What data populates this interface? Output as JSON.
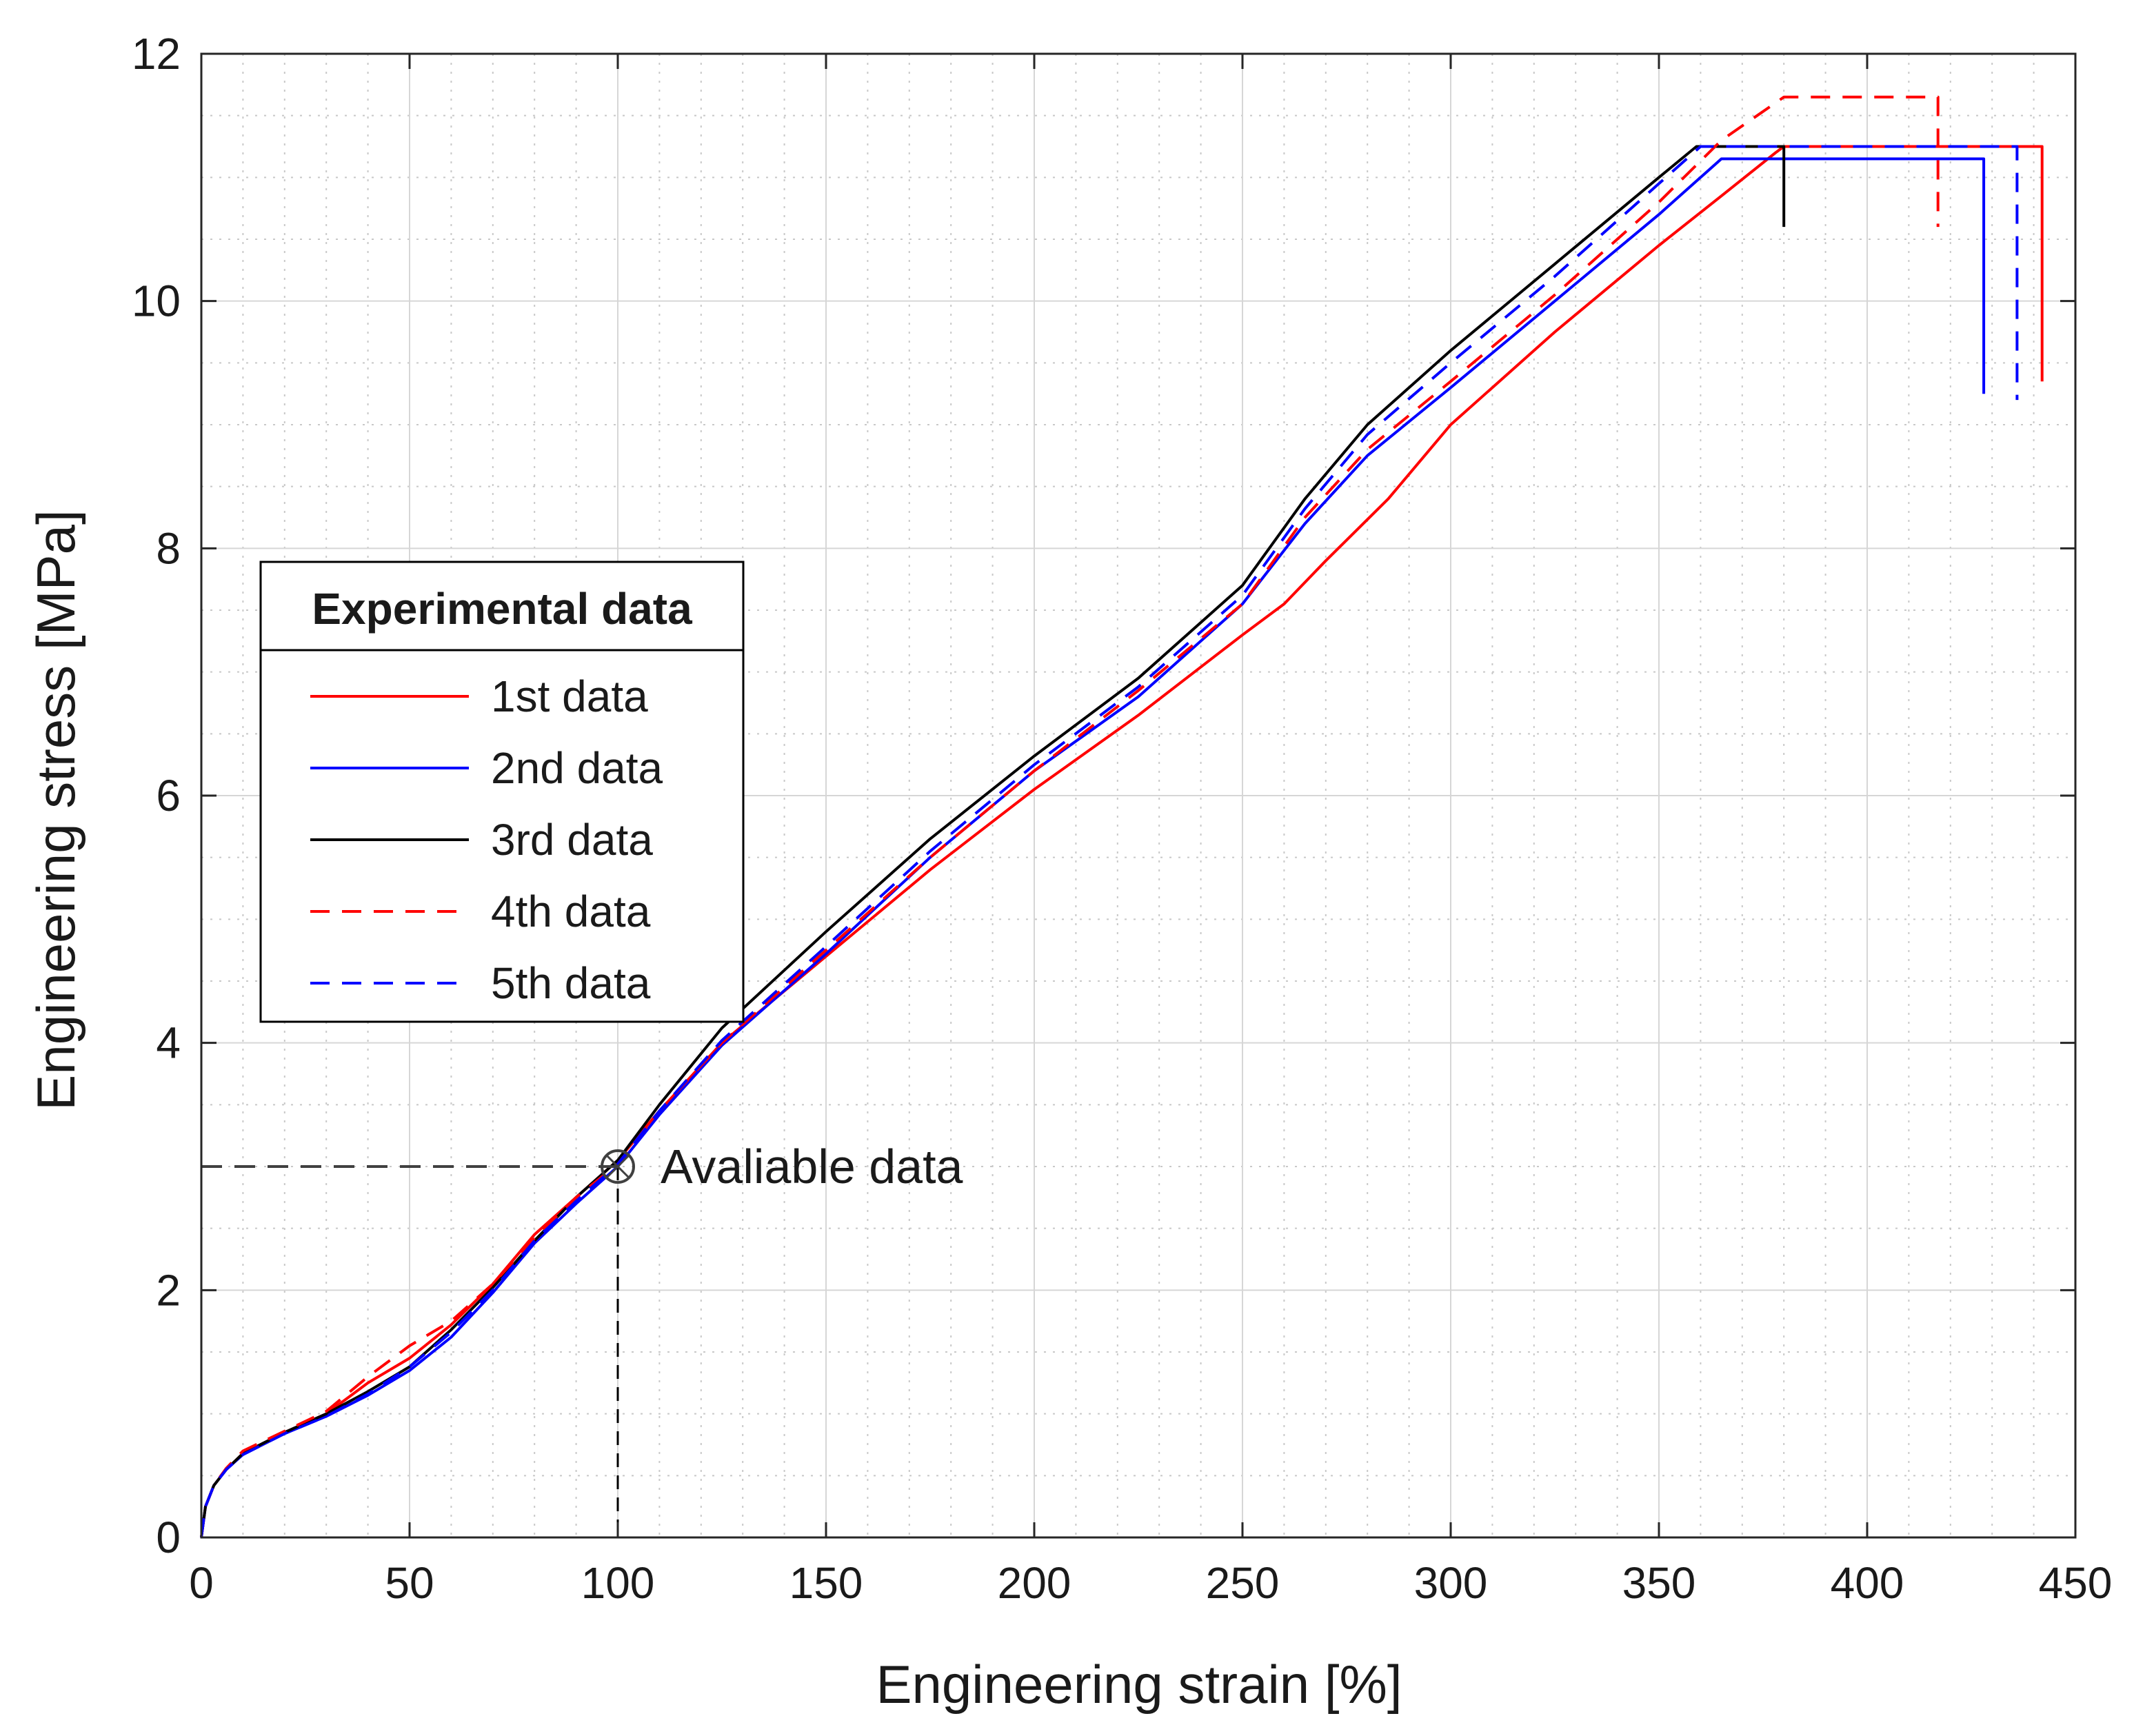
{
  "chart_data": {
    "type": "line",
    "title": "",
    "xlabel": "Engineering strain [%]",
    "ylabel": "Engineering stress [MPa]",
    "xlim": [
      0,
      450
    ],
    "ylim": [
      0,
      12
    ],
    "xticks": [
      0,
      50,
      100,
      150,
      200,
      250,
      300,
      350,
      400,
      450
    ],
    "yticks": [
      0,
      2,
      4,
      6,
      8,
      10,
      12
    ],
    "xtick_labels": [
      "0",
      "50",
      "100",
      "150",
      "200",
      "250",
      "300",
      "350",
      "400",
      "450"
    ],
    "ytick_labels": [
      "0",
      "2",
      "4",
      "6",
      "8",
      "10",
      "12"
    ],
    "grid": true,
    "minor_grid": true,
    "legend": {
      "title": "Experimental data",
      "placement": "center-left"
    },
    "series": [
      {
        "name": "1st data",
        "color": "#ff0000",
        "style": "solid",
        "x": [
          0,
          1,
          3,
          6,
          10,
          20,
          30,
          40,
          50,
          60,
          70,
          80,
          90,
          100,
          110,
          125,
          150,
          175,
          200,
          225,
          250,
          260,
          270,
          285,
          300,
          325,
          350,
          365,
          378,
          380,
          442,
          442
        ],
        "y": [
          0,
          0.25,
          0.42,
          0.55,
          0.68,
          0.85,
          1.0,
          1.25,
          1.45,
          1.72,
          2.05,
          2.45,
          2.75,
          3.05,
          3.45,
          4.0,
          4.7,
          5.4,
          6.05,
          6.65,
          7.3,
          7.55,
          7.9,
          8.4,
          9.0,
          9.75,
          10.45,
          10.85,
          11.2,
          11.25,
          11.25,
          9.35
        ]
      },
      {
        "name": "2nd data",
        "color": "#0000ff",
        "style": "solid",
        "x": [
          0,
          1,
          3,
          6,
          10,
          20,
          30,
          40,
          50,
          60,
          70,
          80,
          90,
          100,
          110,
          125,
          150,
          175,
          200,
          225,
          250,
          265,
          280,
          300,
          325,
          350,
          360,
          365,
          428,
          428
        ],
        "y": [
          0,
          0.25,
          0.42,
          0.55,
          0.67,
          0.84,
          0.98,
          1.15,
          1.35,
          1.62,
          1.98,
          2.38,
          2.7,
          3.0,
          3.42,
          3.98,
          4.72,
          5.5,
          6.2,
          6.8,
          7.55,
          8.2,
          8.75,
          9.3,
          10.0,
          10.7,
          11.0,
          11.15,
          11.15,
          9.25
        ]
      },
      {
        "name": "3rd data",
        "color": "#000000",
        "style": "solid",
        "x": [
          0,
          1,
          3,
          6,
          10,
          20,
          30,
          40,
          50,
          60,
          70,
          80,
          90,
          100,
          110,
          125,
          150,
          175,
          200,
          225,
          250,
          265,
          280,
          300,
          325,
          350,
          359,
          380,
          380
        ],
        "y": [
          0,
          0.25,
          0.42,
          0.55,
          0.68,
          0.85,
          1.0,
          1.18,
          1.38,
          1.68,
          2.02,
          2.4,
          2.75,
          3.05,
          3.5,
          4.12,
          4.9,
          5.65,
          6.32,
          6.95,
          7.7,
          8.4,
          9.0,
          9.6,
          10.3,
          11.0,
          11.25,
          11.25,
          10.6
        ]
      },
      {
        "name": "4th data",
        "color": "#ff0000",
        "style": "dashed",
        "x": [
          0,
          1,
          3,
          6,
          10,
          20,
          30,
          40,
          50,
          60,
          70,
          80,
          90,
          100,
          110,
          125,
          150,
          175,
          200,
          225,
          250,
          265,
          280,
          300,
          325,
          350,
          365,
          380,
          417,
          417
        ],
        "y": [
          0,
          0.25,
          0.42,
          0.56,
          0.7,
          0.86,
          1.02,
          1.3,
          1.55,
          1.75,
          2.05,
          2.42,
          2.75,
          3.02,
          3.45,
          4.0,
          4.75,
          5.5,
          6.2,
          6.85,
          7.55,
          8.25,
          8.8,
          9.35,
          10.05,
          10.8,
          11.3,
          11.65,
          11.65,
          10.6
        ]
      },
      {
        "name": "5th data",
        "color": "#0000ff",
        "style": "dashed",
        "x": [
          0,
          1,
          3,
          6,
          10,
          20,
          30,
          40,
          50,
          60,
          70,
          80,
          90,
          100,
          110,
          125,
          150,
          175,
          200,
          225,
          250,
          265,
          280,
          300,
          325,
          350,
          360,
          436,
          436
        ],
        "y": [
          0,
          0.25,
          0.42,
          0.55,
          0.67,
          0.84,
          0.98,
          1.16,
          1.38,
          1.66,
          2.0,
          2.4,
          2.72,
          3.02,
          3.45,
          4.02,
          4.78,
          5.55,
          6.25,
          6.88,
          7.62,
          8.32,
          8.92,
          9.5,
          10.2,
          10.95,
          11.25,
          11.25,
          9.2
        ]
      }
    ],
    "annotations": [
      {
        "text": "Avaliable data",
        "x": 100,
        "y": 3,
        "marker": "open-circle-cross",
        "guide_lines": "dashed",
        "color": "#404040"
      }
    ]
  }
}
